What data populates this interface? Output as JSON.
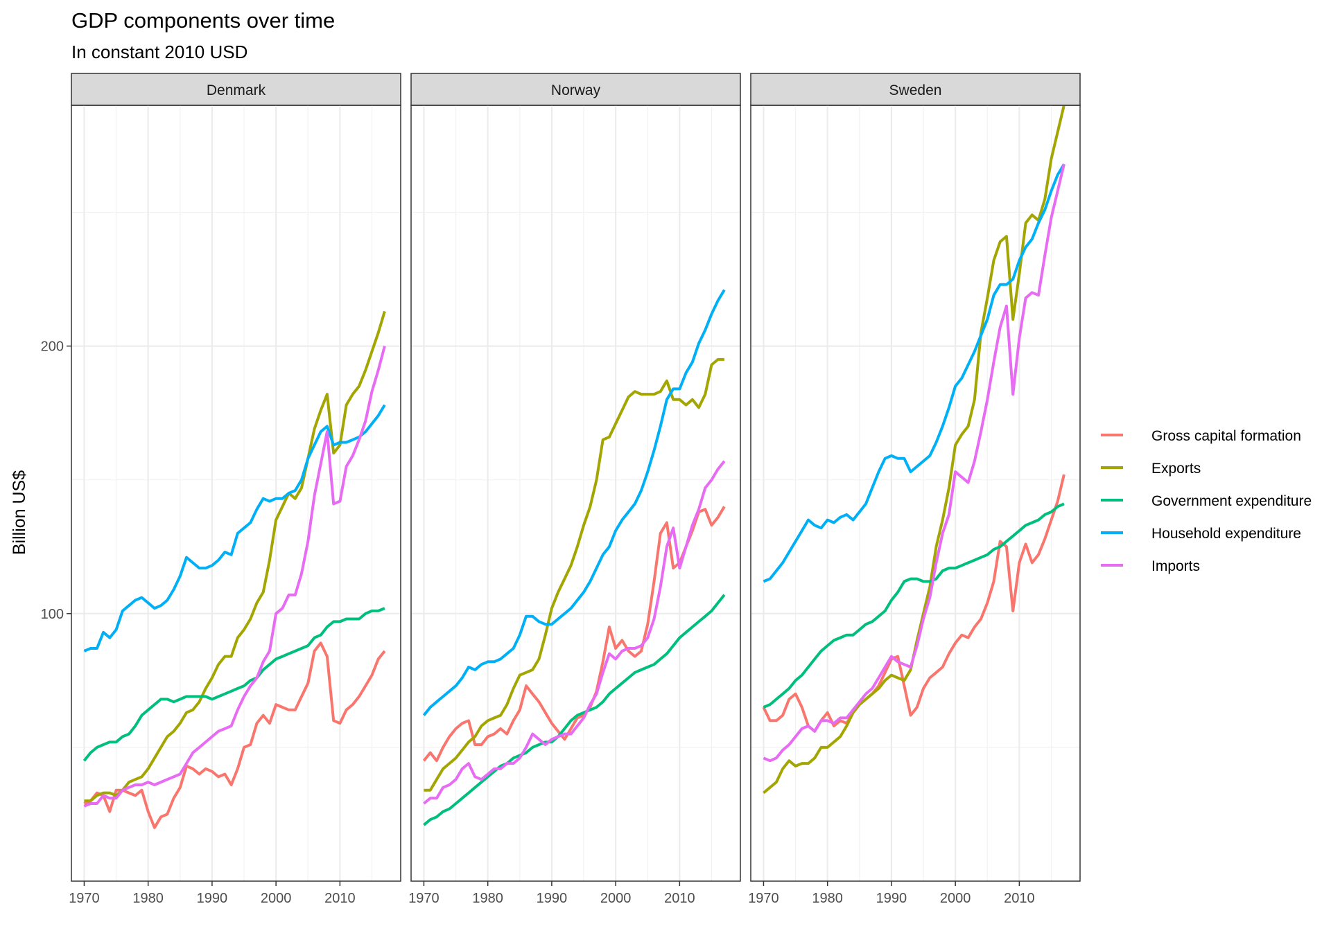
{
  "chart_data": {
    "type": "line",
    "title": "GDP components over time",
    "subtitle": "In constant 2010 USD",
    "xlabel": "",
    "ylabel": "Billion US$",
    "xlim": [
      1968,
      2019.5
    ],
    "ylim": [
      0,
      290
    ],
    "x_ticks": [
      1970,
      1980,
      1990,
      2000,
      2010
    ],
    "y_ticks": [
      100,
      200
    ],
    "grid": true,
    "legend_position": "right",
    "colors": {
      "Gross capital formation": "#F8766D",
      "Exports": "#A3A500",
      "Government expenditure": "#00BF7D",
      "Household expenditure": "#00B0F6",
      "Imports": "#E76BF3"
    },
    "legend": [
      "Gross capital formation",
      "Exports",
      "Government expenditure",
      "Household expenditure",
      "Imports"
    ],
    "x": [
      1970,
      1971,
      1972,
      1973,
      1974,
      1975,
      1976,
      1977,
      1978,
      1979,
      1980,
      1981,
      1982,
      1983,
      1984,
      1985,
      1986,
      1987,
      1988,
      1989,
      1990,
      1991,
      1992,
      1993,
      1994,
      1995,
      1996,
      1997,
      1998,
      1999,
      2000,
      2001,
      2002,
      2003,
      2004,
      2005,
      2006,
      2007,
      2008,
      2009,
      2010,
      2011,
      2012,
      2013,
      2014,
      2015,
      2016,
      2017
    ],
    "panels": [
      {
        "name": "Denmark",
        "series": [
          {
            "name": "Gross capital formation",
            "values": [
              29,
              30,
              33,
              32,
              26,
              34,
              34,
              33,
              32,
              34,
              26,
              20,
              24,
              25,
              31,
              35,
              43,
              42,
              40,
              42,
              41,
              39,
              40,
              36,
              42,
              50,
              51,
              59,
              62,
              59,
              66,
              65,
              64,
              64,
              69,
              74,
              86,
              89,
              84,
              60,
              59,
              64,
              66,
              69,
              73,
              77,
              83,
              86
            ]
          },
          {
            "name": "Exports",
            "values": [
              30,
              30,
              32,
              33,
              33,
              32,
              34,
              37,
              38,
              39,
              42,
              46,
              50,
              54,
              56,
              59,
              63,
              64,
              67,
              72,
              76,
              81,
              84,
              84,
              91,
              94,
              98,
              104,
              108,
              120,
              135,
              140,
              145,
              143,
              147,
              158,
              169,
              176,
              182,
              160,
              163,
              178,
              182,
              185,
              191,
              198,
              205,
              213
            ]
          },
          {
            "name": "Government expenditure",
            "values": [
              45,
              48,
              50,
              51,
              52,
              52,
              54,
              55,
              58,
              62,
              64,
              66,
              68,
              68,
              67,
              68,
              69,
              69,
              69,
              69,
              68,
              69,
              70,
              71,
              72,
              73,
              75,
              76,
              79,
              81,
              83,
              84,
              85,
              86,
              87,
              88,
              91,
              92,
              95,
              97,
              97,
              98,
              98,
              98,
              100,
              101,
              101,
              102
            ]
          },
          {
            "name": "Household expenditure",
            "values": [
              86,
              87,
              87,
              93,
              91,
              94,
              101,
              103,
              105,
              106,
              104,
              102,
              103,
              105,
              109,
              114,
              121,
              119,
              117,
              117,
              118,
              120,
              123,
              122,
              130,
              132,
              134,
              139,
              143,
              142,
              143,
              143,
              145,
              146,
              150,
              158,
              163,
              168,
              170,
              163,
              164,
              164,
              165,
              166,
              168,
              171,
              174,
              178
            ]
          },
          {
            "name": "Imports",
            "values": [
              28,
              29,
              29,
              32,
              31,
              31,
              34,
              35,
              36,
              36,
              37,
              36,
              37,
              38,
              39,
              40,
              44,
              48,
              50,
              52,
              54,
              56,
              57,
              58,
              64,
              69,
              73,
              76,
              82,
              86,
              100,
              102,
              107,
              107,
              115,
              127,
              144,
              156,
              168,
              141,
              142,
              155,
              159,
              165,
              172,
              183,
              191,
              200
            ]
          }
        ]
      },
      {
        "name": "Norway",
        "series": [
          {
            "name": "Gross capital formation",
            "values": [
              45,
              48,
              45,
              50,
              54,
              57,
              59,
              60,
              51,
              51,
              54,
              55,
              57,
              55,
              60,
              64,
              73,
              70,
              67,
              63,
              59,
              56,
              53,
              57,
              61,
              62,
              65,
              71,
              82,
              95,
              87,
              90,
              86,
              84,
              86,
              96,
              112,
              130,
              134,
              117,
              119,
              125,
              131,
              138,
              139,
              133,
              136,
              140
            ]
          },
          {
            "name": "Exports",
            "values": [
              34,
              34,
              38,
              42,
              44,
              46,
              49,
              52,
              54,
              58,
              60,
              61,
              62,
              66,
              72,
              77,
              78,
              79,
              83,
              92,
              102,
              108,
              113,
              118,
              125,
              133,
              140,
              150,
              165,
              166,
              171,
              176,
              181,
              183,
              182,
              182,
              182,
              183,
              187,
              180,
              180,
              178,
              180,
              177,
              182,
              193,
              195,
              195
            ]
          },
          {
            "name": "Government expenditure",
            "values": [
              21,
              23,
              24,
              26,
              27,
              29,
              31,
              33,
              35,
              37,
              39,
              41,
              43,
              44,
              46,
              47,
              48,
              50,
              51,
              52,
              52,
              54,
              57,
              60,
              62,
              63,
              64,
              65,
              67,
              70,
              72,
              74,
              76,
              78,
              79,
              80,
              81,
              83,
              85,
              88,
              91,
              93,
              95,
              97,
              99,
              101,
              104,
              107
            ]
          },
          {
            "name": "Household expenditure",
            "values": [
              62,
              65,
              67,
              69,
              71,
              73,
              76,
              80,
              79,
              81,
              82,
              82,
              83,
              85,
              87,
              92,
              99,
              99,
              97,
              96,
              96,
              98,
              100,
              102,
              105,
              108,
              112,
              117,
              122,
              125,
              131,
              135,
              138,
              141,
              146,
              153,
              161,
              170,
              180,
              184,
              184,
              190,
              194,
              201,
              206,
              212,
              217,
              221
            ]
          },
          {
            "name": "Imports",
            "values": [
              29,
              31,
              31,
              35,
              36,
              38,
              42,
              44,
              39,
              38,
              40,
              42,
              42,
              44,
              44,
              46,
              50,
              55,
              53,
              51,
              53,
              54,
              55,
              55,
              58,
              61,
              66,
              70,
              78,
              85,
              83,
              86,
              87,
              87,
              88,
              91,
              98,
              110,
              125,
              132,
              117,
              125,
              133,
              139,
              147,
              150,
              154,
              157
            ]
          }
        ]
      },
      {
        "name": "Sweden",
        "series": [
          {
            "name": "Gross capital formation",
            "values": [
              65,
              60,
              60,
              62,
              68,
              70,
              65,
              58,
              56,
              60,
              63,
              58,
              60,
              59,
              63,
              66,
              68,
              70,
              73,
              78,
              83,
              84,
              73,
              62,
              65,
              72,
              76,
              78,
              80,
              85,
              89,
              92,
              91,
              95,
              98,
              104,
              112,
              127,
              125,
              101,
              119,
              126,
              119,
              122,
              128,
              135,
              142,
              152
            ]
          },
          {
            "name": "Exports",
            "values": [
              33,
              35,
              37,
              42,
              45,
              43,
              44,
              44,
              46,
              50,
              50,
              52,
              54,
              58,
              63,
              66,
              68,
              70,
              72,
              75,
              77,
              76,
              75,
              79,
              90,
              100,
              110,
              125,
              135,
              147,
              163,
              167,
              170,
              180,
              205,
              218,
              232,
              239,
              241,
              210,
              227,
              246,
              249,
              247,
              255,
              270,
              280,
              290
            ]
          },
          {
            "name": "Government expenditure",
            "values": [
              65,
              66,
              68,
              70,
              72,
              75,
              77,
              80,
              83,
              86,
              88,
              90,
              91,
              92,
              92,
              94,
              96,
              97,
              99,
              101,
              105,
              108,
              112,
              113,
              113,
              112,
              112,
              113,
              116,
              117,
              117,
              118,
              119,
              120,
              121,
              122,
              124,
              125,
              127,
              129,
              131,
              133,
              134,
              135,
              137,
              138,
              140,
              141
            ]
          },
          {
            "name": "Household expenditure",
            "values": [
              112,
              113,
              116,
              119,
              123,
              127,
              131,
              135,
              133,
              132,
              135,
              134,
              136,
              137,
              135,
              138,
              141,
              147,
              153,
              158,
              159,
              158,
              158,
              153,
              155,
              157,
              159,
              164,
              170,
              177,
              185,
              188,
              193,
              198,
              204,
              210,
              219,
              223,
              223,
              225,
              232,
              237,
              240,
              246,
              251,
              258,
              264,
              268
            ]
          },
          {
            "name": "Imports",
            "values": [
              46,
              45,
              46,
              49,
              51,
              54,
              57,
              58,
              56,
              60,
              60,
              59,
              61,
              61,
              64,
              67,
              70,
              72,
              76,
              80,
              84,
              82,
              81,
              80,
              88,
              98,
              106,
              119,
              130,
              137,
              153,
              151,
              149,
              157,
              168,
              180,
              194,
              207,
              215,
              182,
              203,
              218,
              220,
              219,
              234,
              248,
              258,
              268
            ]
          }
        ]
      }
    ]
  }
}
